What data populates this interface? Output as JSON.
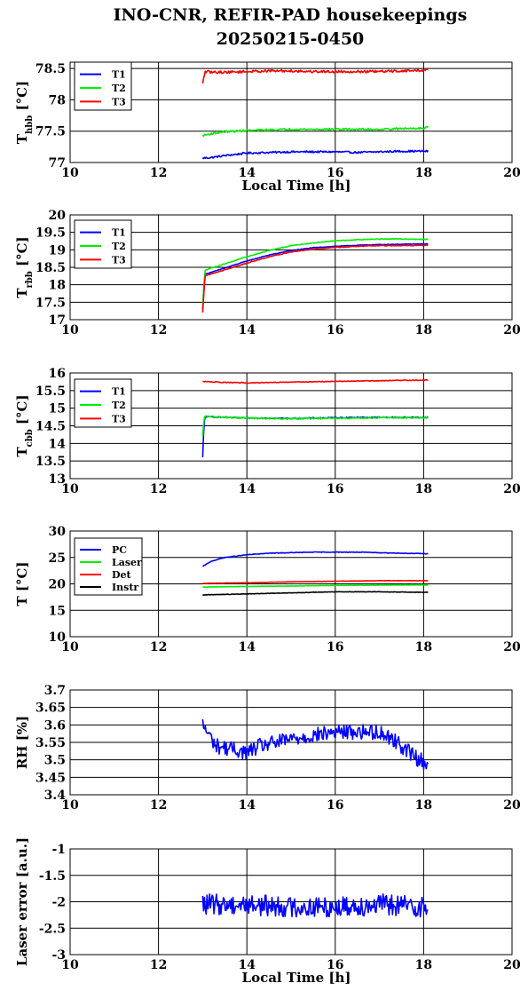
{
  "title": {
    "line1": "INO-CNR, REFIR-PAD housekeepings",
    "line2": "20250215-0450"
  },
  "chart_data": [
    {
      "type": "line",
      "xlabel": "Local Time [h]",
      "ylabel_main": "T",
      "ylabel_sub": "hbb",
      "ylabel_unit": " [°C]",
      "xlim": [
        10,
        20
      ],
      "xticks": [
        10,
        12,
        14,
        16,
        18,
        20
      ],
      "ylim": [
        77,
        78.6
      ],
      "yticks": [
        77,
        77.5,
        78,
        78.5
      ],
      "ytick_labels": [
        "77",
        "77.5",
        "78",
        "78.5"
      ],
      "legend": "top-left",
      "grid": true,
      "series": [
        {
          "name": "T1",
          "color": "#0000ff",
          "x": [
            13.0,
            13.2,
            13.5,
            14.0,
            14.5,
            15.0,
            15.5,
            16.0,
            16.5,
            17.0,
            17.5,
            18.0,
            18.1
          ],
          "y": [
            77.07,
            77.08,
            77.11,
            77.15,
            77.16,
            77.17,
            77.17,
            77.17,
            77.16,
            77.17,
            77.18,
            77.18,
            77.18
          ],
          "noise": 0.015
        },
        {
          "name": "T2",
          "color": "#00ee00",
          "x": [
            13.0,
            13.2,
            13.5,
            14.0,
            14.5,
            15.0,
            15.5,
            16.0,
            16.5,
            17.0,
            17.5,
            18.0,
            18.1
          ],
          "y": [
            77.43,
            77.46,
            77.49,
            77.51,
            77.52,
            77.53,
            77.53,
            77.53,
            77.53,
            77.53,
            77.54,
            77.55,
            77.56
          ],
          "noise": 0.015
        },
        {
          "name": "T3",
          "color": "#ff0000",
          "x": [
            13.0,
            13.05,
            13.2,
            13.5,
            14.0,
            14.5,
            15.0,
            15.5,
            16.0,
            16.5,
            17.0,
            17.5,
            18.0,
            18.1
          ],
          "y": [
            78.25,
            78.45,
            78.44,
            78.44,
            78.45,
            78.46,
            78.46,
            78.45,
            78.45,
            78.45,
            78.45,
            78.46,
            78.47,
            78.48
          ],
          "noise": 0.02
        }
      ]
    },
    {
      "type": "line",
      "xlabel": "",
      "ylabel_main": "T",
      "ylabel_sub": "rbb",
      "ylabel_unit": " [°C]",
      "xlim": [
        10,
        20
      ],
      "xticks": [
        10,
        12,
        14,
        16,
        18,
        20
      ],
      "ylim": [
        17,
        20
      ],
      "yticks": [
        17,
        17.5,
        18,
        18.5,
        19,
        19.5,
        20
      ],
      "ytick_labels": [
        "17",
        "17.5",
        "18",
        "18.5",
        "19",
        "19.5",
        "20"
      ],
      "legend": "top-left",
      "grid": true,
      "series": [
        {
          "name": "T1",
          "color": "#0000ff",
          "x": [
            13.0,
            13.05,
            13.5,
            14.0,
            14.5,
            15.0,
            15.5,
            16.0,
            16.5,
            17.0,
            17.5,
            18.1
          ],
          "y": [
            17.3,
            18.3,
            18.48,
            18.68,
            18.85,
            18.98,
            19.06,
            19.1,
            19.13,
            19.15,
            19.16,
            19.17
          ],
          "noise": 0.008
        },
        {
          "name": "T2",
          "color": "#00ee00",
          "x": [
            13.0,
            13.05,
            13.5,
            14.0,
            14.5,
            15.0,
            15.5,
            16.0,
            16.5,
            17.0,
            17.5,
            18.1
          ],
          "y": [
            17.4,
            18.42,
            18.6,
            18.8,
            18.98,
            19.12,
            19.2,
            19.26,
            19.29,
            19.31,
            19.31,
            19.3
          ],
          "noise": 0.01
        },
        {
          "name": "T3",
          "color": "#ff0000",
          "x": [
            13.0,
            13.05,
            13.5,
            14.0,
            14.5,
            15.0,
            15.5,
            16.0,
            16.5,
            17.0,
            17.5,
            18.1
          ],
          "y": [
            17.2,
            18.25,
            18.43,
            18.62,
            18.8,
            18.94,
            19.02,
            19.07,
            19.1,
            19.12,
            19.12,
            19.13
          ],
          "noise": 0.01
        }
      ]
    },
    {
      "type": "line",
      "xlabel": "",
      "ylabel_main": "T",
      "ylabel_sub": "cbb",
      "ylabel_unit": " [°C]",
      "xlim": [
        10,
        20
      ],
      "xticks": [
        10,
        12,
        14,
        16,
        18,
        20
      ],
      "ylim": [
        13,
        16
      ],
      "yticks": [
        13,
        13.5,
        14,
        14.5,
        15,
        15.5,
        16
      ],
      "ytick_labels": [
        "13",
        "13.5",
        "14",
        "14.5",
        "15",
        "15.5",
        "16"
      ],
      "legend": "top-left",
      "grid": true,
      "series": [
        {
          "name": "T1",
          "color": "#0000ff",
          "x": [
            13.0,
            13.03,
            13.06,
            13.5,
            14.0,
            14.5,
            15.0,
            15.5,
            16.0,
            16.5,
            17.0,
            17.5,
            18.1
          ],
          "y": [
            13.6,
            14.6,
            14.76,
            14.74,
            14.72,
            14.72,
            14.71,
            14.72,
            14.73,
            14.74,
            14.74,
            14.74,
            14.74
          ],
          "noise": 0.015
        },
        {
          "name": "T2",
          "color": "#00ee00",
          "x": [
            13.0,
            13.03,
            13.06,
            13.5,
            14.0,
            14.5,
            15.0,
            15.5,
            16.0,
            16.5,
            17.0,
            17.5,
            18.1
          ],
          "y": [
            14.2,
            14.7,
            14.77,
            14.74,
            14.72,
            14.71,
            14.7,
            14.71,
            14.71,
            14.72,
            14.73,
            14.73,
            14.73
          ],
          "noise": 0.02
        },
        {
          "name": "T3",
          "color": "#ff0000",
          "x": [
            13.0,
            13.5,
            14.0,
            14.5,
            15.0,
            15.5,
            16.0,
            16.5,
            17.0,
            17.5,
            18.1
          ],
          "y": [
            15.76,
            15.73,
            15.72,
            15.73,
            15.74,
            15.75,
            15.76,
            15.77,
            15.78,
            15.79,
            15.8
          ],
          "noise": 0.01
        }
      ]
    },
    {
      "type": "line",
      "xlabel": "",
      "ylabel_main": "T",
      "ylabel_sub": "",
      "ylabel_unit": " [°C]",
      "xlim": [
        10,
        20
      ],
      "xticks": [
        10,
        12,
        14,
        16,
        18,
        20
      ],
      "ylim": [
        10,
        30
      ],
      "yticks": [
        10,
        15,
        20,
        25,
        30
      ],
      "ytick_labels": [
        "10",
        "15",
        "20",
        "25",
        "30"
      ],
      "legend": "top-left",
      "grid": true,
      "series": [
        {
          "name": "PC",
          "color": "#0000ff",
          "x": [
            13.0,
            13.2,
            13.5,
            14.0,
            14.5,
            15.0,
            15.5,
            16.0,
            16.5,
            17.0,
            17.5,
            18.1
          ],
          "y": [
            23.3,
            24.3,
            25.0,
            25.5,
            25.8,
            25.9,
            26.0,
            26.0,
            26.0,
            25.9,
            25.8,
            25.7
          ],
          "noise": 0.05
        },
        {
          "name": "Laser",
          "color": "#00ee00",
          "x": [
            13.0,
            14.0,
            15.0,
            16.0,
            17.0,
            18.1
          ],
          "y": [
            19.4,
            19.5,
            19.6,
            19.7,
            19.75,
            19.8
          ],
          "noise": 0.03
        },
        {
          "name": "Det",
          "color": "#ff0000",
          "x": [
            13.0,
            14.0,
            15.0,
            16.0,
            17.0,
            18.1
          ],
          "y": [
            20.1,
            20.2,
            20.4,
            20.5,
            20.6,
            20.6
          ],
          "noise": 0.03
        },
        {
          "name": "Instr",
          "color": "#000000",
          "x": [
            13.0,
            13.5,
            14.0,
            15.0,
            16.0,
            17.0,
            18.1
          ],
          "y": [
            17.9,
            18.0,
            18.1,
            18.3,
            18.5,
            18.5,
            18.4
          ],
          "noise": 0.04
        }
      ]
    },
    {
      "type": "line",
      "xlabel": "",
      "ylabel_main": "RH [%]",
      "ylabel_sub": "",
      "ylabel_unit": "",
      "xlim": [
        10,
        20
      ],
      "xticks": [
        10,
        12,
        14,
        16,
        18,
        20
      ],
      "ylim": [
        3.4,
        3.7
      ],
      "yticks": [
        3.4,
        3.45,
        3.5,
        3.55,
        3.6,
        3.65,
        3.7
      ],
      "ytick_labels": [
        "3.4",
        "3.45",
        "3.5",
        "3.55",
        "3.6",
        "3.65",
        "3.7"
      ],
      "legend": "none",
      "grid": true,
      "series": [
        {
          "name": "",
          "color": "#0000ff",
          "x": [
            13.0,
            13.3,
            13.7,
            14.0,
            14.3,
            14.7,
            15.0,
            15.5,
            16.0,
            16.5,
            17.0,
            17.3,
            17.6,
            17.9,
            18.1
          ],
          "y": [
            3.6,
            3.54,
            3.53,
            3.52,
            3.54,
            3.55,
            3.56,
            3.57,
            3.58,
            3.58,
            3.58,
            3.56,
            3.53,
            3.5,
            3.49
          ],
          "noise": 0.022
        }
      ]
    },
    {
      "type": "line",
      "xlabel": "Local Time [h]",
      "ylabel_main": "Laser error [a.u.]",
      "ylabel_sub": "",
      "ylabel_unit": "",
      "xlim": [
        10,
        20
      ],
      "xticks": [
        10,
        12,
        14,
        16,
        18,
        20
      ],
      "ylim": [
        -3,
        -1
      ],
      "yticks": [
        -3,
        -2.5,
        -2,
        -1.5,
        -1
      ],
      "ytick_labels": [
        "-3",
        "-2.5",
        "-2",
        "-1.5",
        "-1"
      ],
      "legend": "none",
      "grid": true,
      "series": [
        {
          "name": "",
          "color": "#0000ff",
          "x": [
            13.0,
            14.0,
            15.0,
            16.0,
            17.0,
            18.1
          ],
          "y": [
            -2.05,
            -2.05,
            -2.1,
            -2.1,
            -2.05,
            -2.1
          ],
          "noise": 0.2
        }
      ]
    }
  ]
}
